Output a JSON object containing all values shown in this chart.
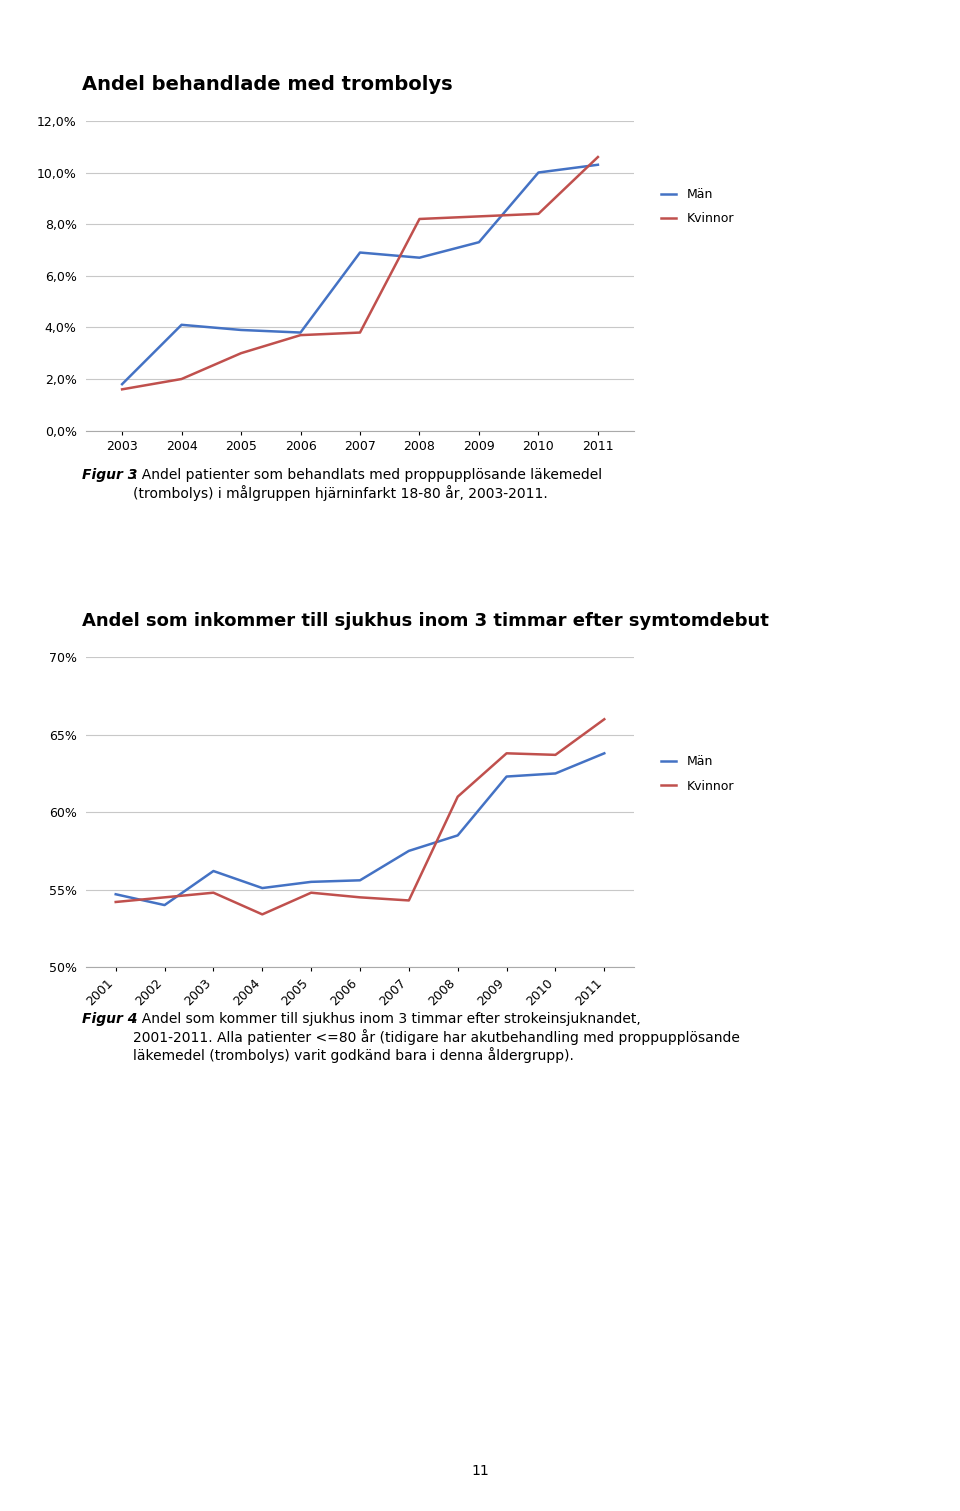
{
  "chart1": {
    "title": "Andel behandlade med trombolys",
    "years": [
      2003,
      2004,
      2005,
      2006,
      2007,
      2008,
      2009,
      2010,
      2011
    ],
    "man": [
      1.8,
      4.1,
      3.9,
      3.8,
      6.9,
      6.7,
      7.3,
      10.0,
      10.3
    ],
    "kvinnor": [
      1.6,
      2.0,
      3.0,
      3.7,
      3.8,
      8.2,
      8.3,
      8.4,
      10.6
    ],
    "man_color": "#4472C4",
    "kvinnor_color": "#C0504D",
    "ylim_raw": [
      0.0,
      0.12
    ],
    "yticks_raw": [
      0.0,
      0.02,
      0.04,
      0.06,
      0.08,
      0.1,
      0.12
    ],
    "ytick_labels": [
      "0,0%",
      "2,0%",
      "4,0%",
      "6,0%",
      "8,0%",
      "10,0%",
      "12,0%"
    ],
    "legend_labels": [
      "Män",
      "Kvinnor"
    ]
  },
  "figur3_bold": "Figur 3",
  "figur3_text": ". Andel patienter som behandlats med proppupplösande läkemedel\n(trombolys) i målgruppen hjärninfarkt 18-80 år, 2003-2011.",
  "chart2": {
    "title": "Andel som inkommer till sjukhus inom 3 timmar efter symtomdebut",
    "years": [
      2001,
      2002,
      2003,
      2004,
      2005,
      2006,
      2007,
      2008,
      2009,
      2010,
      2011
    ],
    "man": [
      54.7,
      54.0,
      56.2,
      55.1,
      55.5,
      55.6,
      57.5,
      58.5,
      62.3,
      62.5,
      63.8
    ],
    "kvinnor": [
      54.2,
      54.5,
      54.8,
      53.4,
      54.8,
      54.5,
      54.3,
      61.0,
      63.8,
      63.7,
      66.0
    ],
    "man_color": "#4472C4",
    "kvinnor_color": "#C0504D",
    "ylim": [
      50.0,
      70.0
    ],
    "yticks": [
      50.0,
      55.0,
      60.0,
      65.0,
      70.0
    ],
    "ytick_labels": [
      "50%",
      "55%",
      "60%",
      "65%",
      "70%"
    ],
    "legend_labels": [
      "Män",
      "Kvinnor"
    ]
  },
  "figur4_bold": "Figur 4",
  "figur4_text": ". Andel som kommer till sjukhus inom 3 timmar efter strokeinsjuknandet,\n2001-2011. Alla patienter <=80 år (tidigare har akutbehandling med proppupplösande\nläkemedel (trombolys) varit godkänd bara i denna åldergrupp).",
  "page_number": "11",
  "background_color": "#ffffff",
  "grid_color": "#c8c8c8",
  "text_color": "#000000",
  "title1_fontsize": 14,
  "title2_fontsize": 13,
  "caption_fontsize": 10,
  "tick_fontsize": 9,
  "legend_fontsize": 9,
  "linewidth": 1.8
}
